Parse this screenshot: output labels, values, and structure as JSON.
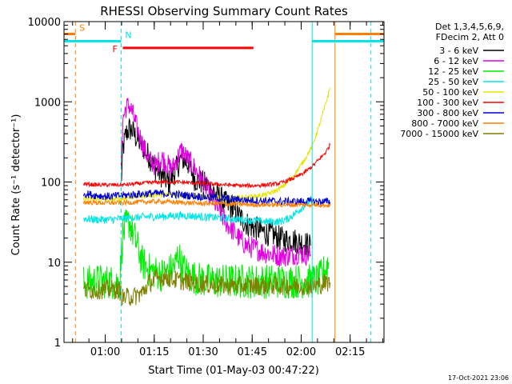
{
  "chart_data": {
    "type": "line",
    "title": "RHESSI Observing Summary Count Rates",
    "xlabel": "Start Time (01-May-03 00:47:22)",
    "ylabel": "Count Rate (s⁻¹ detector⁻¹)",
    "x_scale": "time",
    "x_unit": "minutes after 00:47:22",
    "xlim": [
      0,
      98
    ],
    "y_scale": "log",
    "ylim": [
      1,
      10000
    ],
    "y_tick_labels": [
      "1",
      "10",
      "100",
      "1000",
      "10000"
    ],
    "x_tick_labels": [
      "01:00",
      "01:15",
      "01:30",
      "01:45",
      "02:00",
      "02:15"
    ],
    "grid": false,
    "legend_placement": "right",
    "legend_header": [
      "Det 1,3,4,5,6,9,",
      "FDecim 2, Att 0"
    ],
    "footer_date": "17-Oct-2021 23:06",
    "flags": [
      {
        "label": "S",
        "color": "#ff7f00",
        "segments": [
          [
            0,
            3.5
          ],
          [
            83,
            98
          ]
        ],
        "level": 7000
      },
      {
        "label": "N",
        "color": "#00e5e5",
        "segments": [
          [
            0,
            17.5
          ],
          [
            76,
            98
          ]
        ],
        "level": 5700
      },
      {
        "label": "F",
        "color": "#ff0000",
        "segments": [
          [
            18,
            58
          ]
        ],
        "level": 4700
      }
    ],
    "vlines": [
      {
        "x": 3.5,
        "color": "#ff7f00",
        "dashed": true
      },
      {
        "x": 17.5,
        "color": "#00e5e5",
        "dashed": true
      },
      {
        "x": 76,
        "color": "#00e5e5",
        "dashed": false
      },
      {
        "x": 83,
        "color": "#ff7f00",
        "dashed": false
      },
      {
        "x": 94,
        "color": "#00e5e5",
        "dashed": true
      }
    ],
    "series": [
      {
        "name": "3 - 6 keV",
        "color": "#000000",
        "points": [
          [
            17.5,
            90
          ],
          [
            18,
            250
          ],
          [
            19,
            400
          ],
          [
            20,
            460
          ],
          [
            21,
            430
          ],
          [
            22,
            360
          ],
          [
            24,
            280
          ],
          [
            26,
            210
          ],
          [
            28,
            150
          ],
          [
            30,
            120
          ],
          [
            32,
            100
          ],
          [
            34,
            135
          ],
          [
            36,
            200
          ],
          [
            38,
            170
          ],
          [
            40,
            110
          ],
          [
            42,
            100
          ],
          [
            44,
            90
          ],
          [
            46,
            75
          ],
          [
            48,
            62
          ],
          [
            50,
            52
          ],
          [
            52,
            45
          ],
          [
            54,
            36
          ],
          [
            56,
            30
          ],
          [
            58,
            27
          ],
          [
            60,
            25
          ],
          [
            62,
            23
          ],
          [
            64,
            22
          ],
          [
            66,
            20
          ],
          [
            68,
            19
          ],
          [
            70,
            19
          ],
          [
            72,
            18
          ],
          [
            74,
            17
          ],
          [
            75.5,
            16
          ]
        ],
        "noise": 0.16
      },
      {
        "name": "6 - 12 keV",
        "color": "#e000e0",
        "points": [
          [
            17.5,
            160
          ],
          [
            18,
            600
          ],
          [
            19,
            850
          ],
          [
            20,
            900
          ],
          [
            21,
            720
          ],
          [
            22,
            520
          ],
          [
            24,
            300
          ],
          [
            26,
            190
          ],
          [
            28,
            160
          ],
          [
            30,
            200
          ],
          [
            31,
            180
          ],
          [
            33,
            140
          ],
          [
            35,
            210
          ],
          [
            36,
            250
          ],
          [
            38,
            190
          ],
          [
            40,
            150
          ],
          [
            42,
            110
          ],
          [
            44,
            80
          ],
          [
            46,
            56
          ],
          [
            48,
            40
          ],
          [
            50,
            30
          ],
          [
            52,
            24
          ],
          [
            54,
            19
          ],
          [
            56,
            16
          ],
          [
            58,
            15
          ],
          [
            60,
            14
          ],
          [
            62,
            13
          ],
          [
            64,
            12.5
          ],
          [
            66,
            12
          ],
          [
            68,
            12
          ],
          [
            70,
            12.5
          ],
          [
            72,
            13
          ],
          [
            74,
            12.5
          ],
          [
            75.5,
            12.5
          ]
        ],
        "noise": 0.14
      },
      {
        "name": "12 - 25 keV",
        "color": "#00ee00",
        "points": [
          [
            6,
            5.5
          ],
          [
            10,
            5.8
          ],
          [
            14,
            5.7
          ],
          [
            17,
            5.5
          ],
          [
            18,
            22
          ],
          [
            19,
            28
          ],
          [
            20,
            32
          ],
          [
            22,
            18
          ],
          [
            24,
            10
          ],
          [
            26,
            8
          ],
          [
            28,
            7.5
          ],
          [
            30,
            7
          ],
          [
            32,
            7.5
          ],
          [
            34,
            9
          ],
          [
            35,
            13
          ],
          [
            36,
            9
          ],
          [
            38,
            7
          ],
          [
            42,
            6
          ],
          [
            46,
            5.8
          ],
          [
            50,
            5.8
          ],
          [
            54,
            5.8
          ],
          [
            58,
            5.8
          ],
          [
            62,
            5.8
          ],
          [
            66,
            5.8
          ],
          [
            70,
            5.8
          ],
          [
            74,
            5.8
          ],
          [
            76,
            5.8
          ],
          [
            78,
            6
          ],
          [
            80,
            8
          ],
          [
            81,
            10
          ]
        ],
        "noise": 0.22
      },
      {
        "name": "25 - 50 keV",
        "color": "#00e5e5",
        "points": [
          [
            6,
            35
          ],
          [
            10,
            34
          ],
          [
            14,
            34
          ],
          [
            18,
            35
          ],
          [
            22,
            36
          ],
          [
            26,
            37
          ],
          [
            30,
            37
          ],
          [
            34,
            38
          ],
          [
            38,
            38
          ],
          [
            42,
            37
          ],
          [
            46,
            36
          ],
          [
            50,
            35
          ],
          [
            54,
            34
          ],
          [
            58,
            33
          ],
          [
            62,
            32
          ],
          [
            66,
            32
          ],
          [
            68,
            34
          ],
          [
            70,
            38
          ],
          [
            72,
            45
          ],
          [
            74,
            52
          ],
          [
            76,
            60
          ]
        ],
        "noise": 0.05
      },
      {
        "name": "50 - 100 keV",
        "color": "#e5e500",
        "points": [
          [
            6,
            62
          ],
          [
            10,
            60
          ],
          [
            14,
            60
          ],
          [
            18,
            62
          ],
          [
            22,
            66
          ],
          [
            26,
            68
          ],
          [
            30,
            70
          ],
          [
            34,
            70
          ],
          [
            38,
            68
          ],
          [
            42,
            66
          ],
          [
            46,
            64
          ],
          [
            50,
            64
          ],
          [
            54,
            64
          ],
          [
            58,
            66
          ],
          [
            62,
            70
          ],
          [
            64,
            75
          ],
          [
            66,
            82
          ],
          [
            68,
            95
          ],
          [
            70,
            115
          ],
          [
            72,
            150
          ],
          [
            74,
            200
          ],
          [
            76,
            280
          ],
          [
            78,
            480
          ],
          [
            80,
            900
          ],
          [
            81.5,
            1500
          ]
        ],
        "noise": 0.03
      },
      {
        "name": "100 - 300 keV",
        "color": "#ff0000",
        "points": [
          [
            6,
            95
          ],
          [
            10,
            92
          ],
          [
            14,
            92
          ],
          [
            18,
            92
          ],
          [
            22,
            95
          ],
          [
            26,
            98
          ],
          [
            30,
            100
          ],
          [
            34,
            100
          ],
          [
            38,
            98
          ],
          [
            42,
            96
          ],
          [
            46,
            94
          ],
          [
            50,
            92
          ],
          [
            54,
            90
          ],
          [
            58,
            90
          ],
          [
            62,
            92
          ],
          [
            66,
            96
          ],
          [
            70,
            110
          ],
          [
            72,
            120
          ],
          [
            74,
            135
          ],
          [
            76,
            155
          ],
          [
            78,
            190
          ],
          [
            80,
            230
          ],
          [
            81.5,
            290
          ]
        ],
        "noise": 0.025
      },
      {
        "name": "300 - 800 keV",
        "color": "#0000cc",
        "points": [
          [
            6,
            72
          ],
          [
            10,
            68
          ],
          [
            14,
            66
          ],
          [
            18,
            68
          ],
          [
            22,
            70
          ],
          [
            26,
            72
          ],
          [
            30,
            72
          ],
          [
            34,
            70
          ],
          [
            38,
            68
          ],
          [
            42,
            66
          ],
          [
            46,
            64
          ],
          [
            50,
            62
          ],
          [
            54,
            60
          ],
          [
            58,
            59
          ],
          [
            62,
            58
          ],
          [
            66,
            57
          ],
          [
            70,
            57
          ],
          [
            74,
            57
          ],
          [
            76,
            57
          ],
          [
            78,
            57
          ],
          [
            80,
            57
          ],
          [
            81.5,
            56
          ]
        ],
        "noise": 0.05
      },
      {
        "name": "800 - 7000 keV",
        "color": "#ff7f00",
        "points": [
          [
            6,
            56
          ],
          [
            10,
            55
          ],
          [
            14,
            55
          ],
          [
            18,
            55
          ],
          [
            22,
            56
          ],
          [
            26,
            57
          ],
          [
            30,
            57
          ],
          [
            34,
            56
          ],
          [
            38,
            55
          ],
          [
            42,
            54
          ],
          [
            46,
            54
          ],
          [
            50,
            53
          ],
          [
            54,
            53
          ],
          [
            58,
            52
          ],
          [
            62,
            52
          ],
          [
            66,
            52
          ],
          [
            70,
            52
          ],
          [
            74,
            52
          ],
          [
            78,
            52
          ],
          [
            81.5,
            51
          ]
        ],
        "noise": 0.03
      },
      {
        "name": "7000 - 15000 keV",
        "color": "#7f7f00",
        "points": [
          [
            6,
            4.5
          ],
          [
            10,
            4.5
          ],
          [
            14,
            4.6
          ],
          [
            17,
            4.5
          ],
          [
            18,
            3.6
          ],
          [
            20,
            3.7
          ],
          [
            22,
            3.8
          ],
          [
            24,
            4.2
          ],
          [
            26,
            5.5
          ],
          [
            28,
            6.2
          ],
          [
            30,
            6.5
          ],
          [
            32,
            6.4
          ],
          [
            34,
            6.0
          ],
          [
            38,
            5.7
          ],
          [
            42,
            5.4
          ],
          [
            46,
            5.2
          ],
          [
            50,
            5.1
          ],
          [
            54,
            5.1
          ],
          [
            58,
            5.1
          ],
          [
            62,
            5.1
          ],
          [
            66,
            5.1
          ],
          [
            70,
            5.1
          ],
          [
            74,
            5.1
          ],
          [
            76,
            5.1
          ],
          [
            78,
            5.2
          ],
          [
            80,
            5.5
          ],
          [
            81.5,
            5.6
          ]
        ],
        "noise": 0.12
      }
    ]
  }
}
